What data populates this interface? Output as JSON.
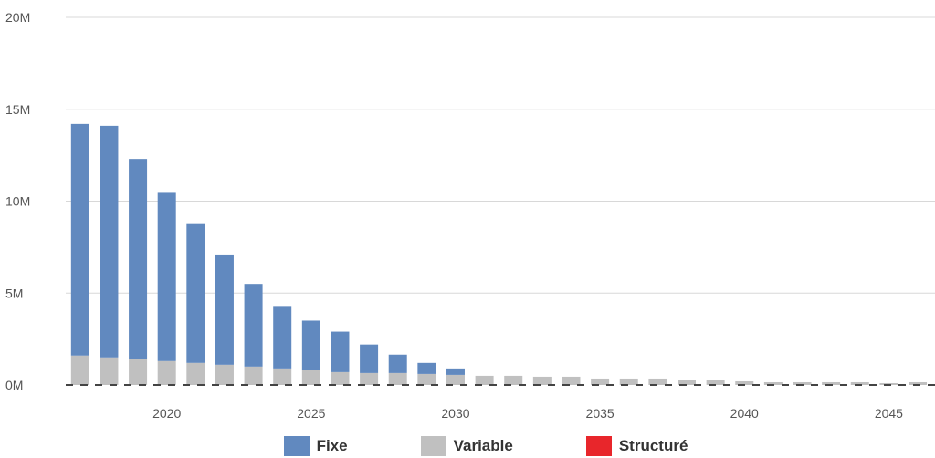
{
  "chart_data": {
    "type": "bar",
    "stacked": true,
    "x": [
      2017,
      2018,
      2019,
      2020,
      2021,
      2022,
      2023,
      2024,
      2025,
      2026,
      2027,
      2028,
      2029,
      2030,
      2031,
      2032,
      2033,
      2034,
      2035,
      2036,
      2037,
      2038,
      2039,
      2040,
      2041,
      2042,
      2043,
      2044,
      2045,
      2046
    ],
    "series": [
      {
        "name": "Variable",
        "color": "#c0c0c0",
        "values": [
          1.6,
          1.5,
          1.4,
          1.3,
          1.2,
          1.1,
          1.0,
          0.9,
          0.8,
          0.7,
          0.65,
          0.65,
          0.6,
          0.55,
          0.5,
          0.5,
          0.45,
          0.45,
          0.35,
          0.35,
          0.35,
          0.25,
          0.25,
          0.2,
          0.15,
          0.15,
          0.15,
          0.15,
          0.1,
          0.15
        ]
      },
      {
        "name": "Fixe",
        "color": "#6189bf",
        "values": [
          12.6,
          12.6,
          10.9,
          9.2,
          7.6,
          6.0,
          4.5,
          3.4,
          2.7,
          2.2,
          1.55,
          1.0,
          0.6,
          0.35,
          0,
          0,
          0,
          0,
          0,
          0,
          0,
          0,
          0,
          0,
          0,
          0,
          0,
          0,
          0,
          0
        ]
      },
      {
        "name": "Structuré",
        "color": "#e8262b",
        "values": [
          0,
          0,
          0,
          0,
          0,
          0,
          0,
          0,
          0,
          0,
          0,
          0,
          0,
          0,
          0,
          0,
          0,
          0,
          0,
          0,
          0,
          0,
          0,
          0,
          0,
          0,
          0,
          0,
          0,
          0
        ]
      }
    ],
    "ylim": [
      0,
      20
    ],
    "y_ticks": [
      "0M",
      "5M",
      "10M",
      "15M",
      "20M"
    ],
    "y_tick_values": [
      0,
      5,
      10,
      15,
      20
    ],
    "x_ticks": [
      "2020",
      "2025",
      "2030",
      "2035",
      "2040",
      "2045"
    ],
    "x_tick_values": [
      2020,
      2025,
      2030,
      2035,
      2040,
      2045
    ],
    "xlim": [
      2016.5,
      2046.6
    ],
    "grid": true,
    "legend_position": "bottom",
    "legend": [
      "Fixe",
      "Variable",
      "Structuré"
    ],
    "baseline_color": "#444444",
    "grid_color": "#d8d8d8"
  }
}
